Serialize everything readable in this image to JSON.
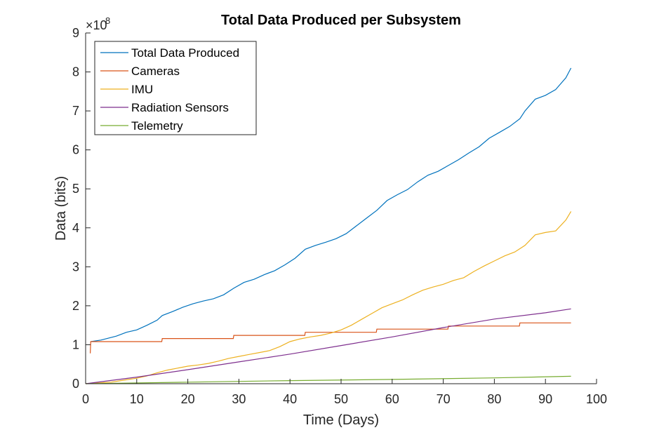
{
  "chart_data": {
    "type": "line",
    "title": "Total Data Produced per Subsystem",
    "xlabel": "Time (Days)",
    "ylabel": "Data (bits)",
    "y_exponent_label": "×10",
    "y_exponent_power": "8",
    "y_multiplier": 100000000,
    "xlim": [
      0,
      100
    ],
    "ylim": [
      0,
      9
    ],
    "x_ticks": [
      0,
      10,
      20,
      30,
      40,
      50,
      60,
      70,
      80,
      90,
      100
    ],
    "y_ticks": [
      0,
      1,
      2,
      3,
      4,
      5,
      6,
      7,
      8,
      9
    ],
    "grid": false,
    "legend_position": "top-left",
    "series": [
      {
        "name": "Total Data Produced",
        "color": "#0072BD",
        "points": [
          [
            1,
            1.08
          ],
          [
            3,
            1.12
          ],
          [
            6,
            1.22
          ],
          [
            8,
            1.32
          ],
          [
            10,
            1.38
          ],
          [
            12,
            1.5
          ],
          [
            14,
            1.63
          ],
          [
            15,
            1.75
          ],
          [
            17,
            1.85
          ],
          [
            19,
            1.96
          ],
          [
            21,
            2.05
          ],
          [
            23,
            2.12
          ],
          [
            25,
            2.18
          ],
          [
            27,
            2.28
          ],
          [
            29,
            2.45
          ],
          [
            31,
            2.6
          ],
          [
            33,
            2.68
          ],
          [
            35,
            2.8
          ],
          [
            37,
            2.9
          ],
          [
            39,
            3.05
          ],
          [
            41,
            3.22
          ],
          [
            43,
            3.45
          ],
          [
            45,
            3.55
          ],
          [
            47,
            3.63
          ],
          [
            49,
            3.72
          ],
          [
            51,
            3.85
          ],
          [
            53,
            4.05
          ],
          [
            55,
            4.25
          ],
          [
            57,
            4.45
          ],
          [
            59,
            4.7
          ],
          [
            61,
            4.85
          ],
          [
            63,
            4.98
          ],
          [
            65,
            5.18
          ],
          [
            67,
            5.35
          ],
          [
            69,
            5.45
          ],
          [
            71,
            5.6
          ],
          [
            73,
            5.75
          ],
          [
            75,
            5.92
          ],
          [
            77,
            6.08
          ],
          [
            79,
            6.3
          ],
          [
            81,
            6.45
          ],
          [
            83,
            6.6
          ],
          [
            85,
            6.8
          ],
          [
            86,
            7.0
          ],
          [
            88,
            7.3
          ],
          [
            90,
            7.4
          ],
          [
            92,
            7.55
          ],
          [
            94,
            7.85
          ],
          [
            95,
            8.1
          ]
        ]
      },
      {
        "name": "Cameras",
        "color": "#D95319",
        "points": [
          [
            0.9,
            0.78
          ],
          [
            1,
            1.08
          ],
          [
            14.9,
            1.08
          ],
          [
            15,
            1.16
          ],
          [
            28.9,
            1.16
          ],
          [
            29,
            1.24
          ],
          [
            42.9,
            1.24
          ],
          [
            43,
            1.32
          ],
          [
            56.9,
            1.32
          ],
          [
            57,
            1.4
          ],
          [
            70.9,
            1.4
          ],
          [
            71,
            1.48
          ],
          [
            84.9,
            1.48
          ],
          [
            85,
            1.56
          ],
          [
            95,
            1.56
          ]
        ]
      },
      {
        "name": "IMU",
        "color": "#EDB120",
        "points": [
          [
            0,
            0
          ],
          [
            5,
            0.04
          ],
          [
            8,
            0.1
          ],
          [
            10,
            0.14
          ],
          [
            12,
            0.2
          ],
          [
            14,
            0.28
          ],
          [
            16,
            0.35
          ],
          [
            18,
            0.4
          ],
          [
            20,
            0.45
          ],
          [
            22,
            0.48
          ],
          [
            24,
            0.52
          ],
          [
            26,
            0.58
          ],
          [
            28,
            0.65
          ],
          [
            30,
            0.7
          ],
          [
            32,
            0.75
          ],
          [
            34,
            0.8
          ],
          [
            36,
            0.85
          ],
          [
            38,
            0.95
          ],
          [
            40,
            1.08
          ],
          [
            42,
            1.15
          ],
          [
            44,
            1.2
          ],
          [
            46,
            1.24
          ],
          [
            48,
            1.3
          ],
          [
            50,
            1.38
          ],
          [
            52,
            1.5
          ],
          [
            54,
            1.65
          ],
          [
            56,
            1.8
          ],
          [
            58,
            1.95
          ],
          [
            60,
            2.05
          ],
          [
            62,
            2.15
          ],
          [
            64,
            2.28
          ],
          [
            66,
            2.4
          ],
          [
            68,
            2.48
          ],
          [
            70,
            2.55
          ],
          [
            72,
            2.65
          ],
          [
            74,
            2.72
          ],
          [
            76,
            2.88
          ],
          [
            78,
            3.02
          ],
          [
            80,
            3.15
          ],
          [
            82,
            3.28
          ],
          [
            84,
            3.38
          ],
          [
            86,
            3.55
          ],
          [
            88,
            3.82
          ],
          [
            90,
            3.88
          ],
          [
            92,
            3.92
          ],
          [
            94,
            4.2
          ],
          [
            95,
            4.42
          ]
        ]
      },
      {
        "name": "Radiation Sensors",
        "color": "#7E2F8E",
        "points": [
          [
            0,
            0
          ],
          [
            10,
            0.17
          ],
          [
            20,
            0.36
          ],
          [
            30,
            0.56
          ],
          [
            40,
            0.76
          ],
          [
            50,
            0.98
          ],
          [
            60,
            1.2
          ],
          [
            70,
            1.44
          ],
          [
            80,
            1.66
          ],
          [
            90,
            1.82
          ],
          [
            95,
            1.92
          ]
        ]
      },
      {
        "name": "Telemetry",
        "color": "#77AC30",
        "points": [
          [
            0,
            0
          ],
          [
            20,
            0.04
          ],
          [
            40,
            0.08
          ],
          [
            60,
            0.11
          ],
          [
            80,
            0.15
          ],
          [
            95,
            0.19
          ]
        ]
      }
    ]
  }
}
